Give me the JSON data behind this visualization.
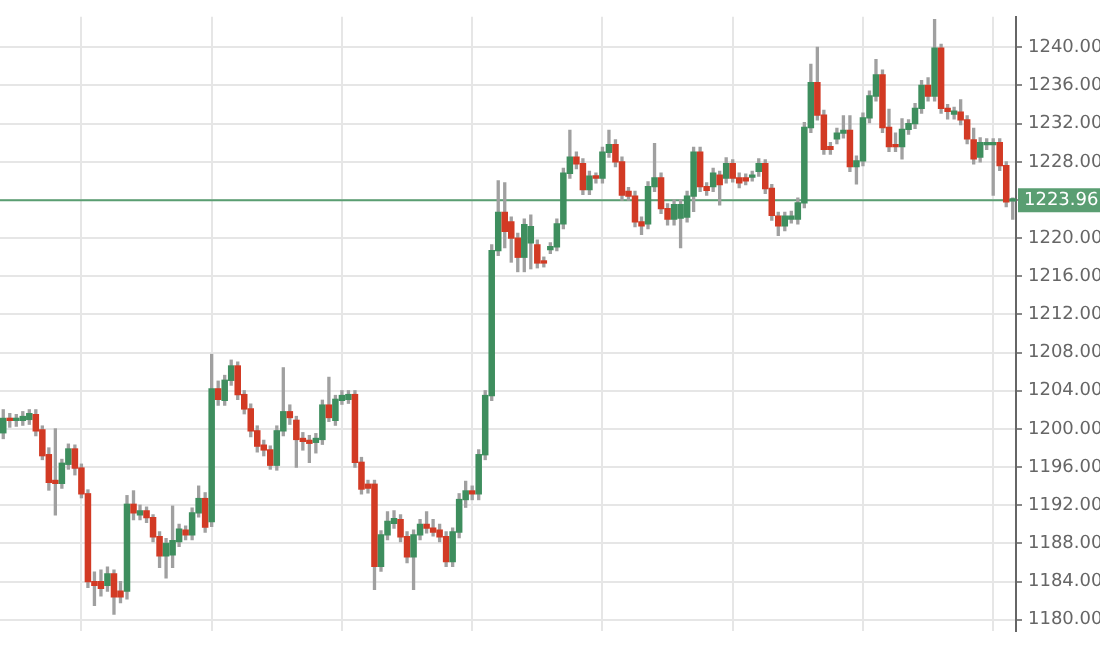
{
  "chart_data": {
    "type": "candlestick",
    "categories": [
      null,
      null,
      null,
      null,
      null,
      null,
      null,
      null,
      null,
      null,
      null,
      null,
      null,
      null,
      null,
      null,
      null,
      null,
      null,
      null,
      null,
      null,
      null,
      null,
      null,
      null,
      null,
      null,
      null,
      null,
      null,
      null,
      null,
      null,
      null,
      null,
      null,
      null,
      null,
      null,
      null,
      null,
      null,
      null,
      null,
      null,
      null,
      null,
      null,
      null,
      null,
      null,
      null,
      null,
      null,
      null,
      null,
      null,
      null,
      null,
      null,
      null,
      null,
      null,
      null,
      null,
      null,
      null,
      null,
      null,
      null,
      null,
      null,
      null,
      null,
      null,
      null,
      null,
      null,
      null,
      null,
      null,
      null,
      null,
      null,
      null,
      null,
      null,
      null,
      null,
      null,
      null,
      null,
      null,
      null,
      null,
      null,
      null,
      null,
      null,
      null,
      null,
      null,
      null,
      null,
      null,
      null,
      null,
      null,
      null,
      null,
      null,
      null,
      null,
      null,
      null,
      null,
      null,
      null,
      null,
      null,
      null,
      null,
      null,
      null,
      null,
      null,
      null,
      null,
      null,
      null,
      null,
      null,
      null,
      null,
      null,
      null,
      null,
      null,
      null,
      null,
      null,
      null,
      null,
      null,
      null,
      null,
      null,
      null,
      null,
      null,
      null,
      null,
      null,
      null,
      null
    ],
    "ohlc": [
      [
        1199.6,
        1202,
        1199,
        1201.1
      ],
      [
        1201.1,
        1201.6,
        1200.2,
        1200.9
      ],
      [
        1200.9,
        1201.5,
        1200.3,
        1201.0
      ],
      [
        1200.9,
        1201.8,
        1200.4,
        1201.3
      ],
      [
        1201.0,
        1202,
        1200.5,
        1201.6
      ],
      [
        1201.5,
        1202,
        1199.3,
        1199.8
      ],
      [
        1199.9,
        1200.3,
        1196.8,
        1197.2
      ],
      [
        1197.3,
        1198,
        1193.6,
        1194.4
      ],
      [
        1194.6,
        1200,
        1191,
        1194.3
      ],
      [
        1194.3,
        1196.8,
        1193.8,
        1196.4
      ],
      [
        1196.3,
        1198.4,
        1195.8,
        1197.9
      ],
      [
        1197.9,
        1198.3,
        1195.2,
        1195.9
      ],
      [
        1195.9,
        1196.3,
        1192.8,
        1193.2
      ],
      [
        1193.2,
        1193.6,
        1183.4,
        1184.0
      ],
      [
        1184.0,
        1185,
        1181.5,
        1183.6
      ],
      [
        1184,
        1185.2,
        1182.5,
        1183.3
      ],
      [
        1183.6,
        1185.5,
        1183,
        1184.8
      ],
      [
        1184.8,
        1185.2,
        1180.6,
        1182.4
      ],
      [
        1183.0,
        1184,
        1181.8,
        1182.4
      ],
      [
        1183.0,
        1193,
        1182.2,
        1192.1
      ],
      [
        1192.1,
        1193.5,
        1190.5,
        1191.2
      ],
      [
        1191.0,
        1192,
        1190.5,
        1191.4
      ],
      [
        1191.4,
        1191.8,
        1190.2,
        1190.7
      ],
      [
        1190.7,
        1191,
        1188.2,
        1188.7
      ],
      [
        1188.7,
        1189.2,
        1185.5,
        1186.7
      ],
      [
        1186.7,
        1188.5,
        1184.4,
        1188.0
      ],
      [
        1186.8,
        1191.9,
        1185.5,
        1188.3
      ],
      [
        1188.2,
        1190,
        1187.7,
        1189.5
      ],
      [
        1189.4,
        1189.8,
        1188.4,
        1188.9
      ],
      [
        1188.9,
        1191.7,
        1188.4,
        1191.2
      ],
      [
        1191.2,
        1194,
        1190.8,
        1192.7
      ],
      [
        1192.7,
        1193.3,
        1189.2,
        1189.7
      ],
      [
        1190.3,
        1207.8,
        1189.8,
        1204.2
      ],
      [
        1204.2,
        1205,
        1202.5,
        1203.1
      ],
      [
        1203.0,
        1205.6,
        1202.5,
        1205.1
      ],
      [
        1205.1,
        1207.2,
        1204.6,
        1206.6
      ],
      [
        1206.6,
        1207,
        1203.1,
        1203.6
      ],
      [
        1203.6,
        1204,
        1201.6,
        1202.1
      ],
      [
        1202.1,
        1202.6,
        1199.2,
        1199.8
      ],
      [
        1199.8,
        1200.3,
        1197.6,
        1198.2
      ],
      [
        1198.3,
        1198.8,
        1197.2,
        1197.8
      ],
      [
        1197.8,
        1198.2,
        1195.8,
        1196.2
      ],
      [
        1196.2,
        1200.3,
        1195.7,
        1199.8
      ],
      [
        1199.8,
        1206.4,
        1199.3,
        1201.8
      ],
      [
        1201.8,
        1202.5,
        1200.5,
        1201.2
      ],
      [
        1200.9,
        1201.3,
        1196,
        1198.9
      ],
      [
        1199.0,
        1199.6,
        1197.8,
        1198.7
      ],
      [
        1198.8,
        1199.3,
        1196.5,
        1198.5
      ],
      [
        1198.6,
        1199.5,
        1197.5,
        1199.0
      ],
      [
        1198.9,
        1203,
        1198.4,
        1202.5
      ],
      [
        1202.5,
        1205.4,
        1200.8,
        1201.2
      ],
      [
        1200.9,
        1203.5,
        1200.4,
        1203.1
      ],
      [
        1203.0,
        1204,
        1202.6,
        1203.5
      ],
      [
        1203.1,
        1204,
        1202.7,
        1203.6
      ],
      [
        1203.6,
        1204,
        1196,
        1196.5
      ],
      [
        1196.5,
        1197,
        1193.2,
        1193.7
      ],
      [
        1194.2,
        1194.6,
        1193.3,
        1193.8
      ],
      [
        1194.2,
        1194.6,
        1183.2,
        1185.6
      ],
      [
        1185.6,
        1189.3,
        1185.1,
        1188.9
      ],
      [
        1188.9,
        1191.3,
        1188.4,
        1190.3
      ],
      [
        1190.1,
        1191.4,
        1189.6,
        1190.6
      ],
      [
        1190.5,
        1191,
        1188.2,
        1188.7
      ],
      [
        1188.7,
        1189.2,
        1186,
        1186.6
      ],
      [
        1186.6,
        1189.4,
        1183.2,
        1188.9
      ],
      [
        1188.9,
        1190.5,
        1188.4,
        1190.0
      ],
      [
        1190.0,
        1191.3,
        1189.1,
        1189.6
      ],
      [
        1189.6,
        1190.5,
        1188.8,
        1189.2
      ],
      [
        1189.4,
        1190,
        1188.2,
        1188.7
      ],
      [
        1188.7,
        1189.2,
        1185.6,
        1186.1
      ],
      [
        1186.1,
        1189.6,
        1185.6,
        1189.2
      ],
      [
        1189.2,
        1193.2,
        1188.6,
        1192.6
      ],
      [
        1192.6,
        1194.5,
        1191.8,
        1193.5
      ],
      [
        1193.5,
        1194,
        1192.6,
        1193.2
      ],
      [
        1193.2,
        1197.8,
        1192.6,
        1197.3
      ],
      [
        1197.3,
        1204,
        1196.8,
        1203.5
      ],
      [
        1203.5,
        1219.3,
        1203,
        1218.7
      ],
      [
        1218.7,
        1226,
        1218.2,
        1222.7
      ],
      [
        1222.7,
        1225.8,
        1219,
        1220.7
      ],
      [
        1221.7,
        1222.2,
        1217.5,
        1220.0
      ],
      [
        1220.0,
        1220.5,
        1216.5,
        1218.0
      ],
      [
        1218.0,
        1222,
        1216.5,
        1221.4
      ],
      [
        1219.5,
        1222.4,
        1216.8,
        1221.2
      ],
      [
        1219.3,
        1219.8,
        1216.9,
        1217.4
      ],
      [
        1217.6,
        1218,
        1217,
        1217.4
      ],
      [
        1218.8,
        1219.5,
        1218.4,
        1219.1
      ],
      [
        1219.1,
        1222,
        1218.7,
        1221.5
      ],
      [
        1221.5,
        1227.3,
        1221,
        1226.8
      ],
      [
        1226.8,
        1231.3,
        1226.3,
        1228.5
      ],
      [
        1228.5,
        1229,
        1227.3,
        1227.8
      ],
      [
        1227.8,
        1228.3,
        1224.6,
        1225.1
      ],
      [
        1225.1,
        1227,
        1224.6,
        1226.5
      ],
      [
        1226.5,
        1226.8,
        1225.8,
        1226.3
      ],
      [
        1226.3,
        1229.5,
        1225.8,
        1229.0
      ],
      [
        1229.0,
        1231.3,
        1228.5,
        1229.8
      ],
      [
        1229.8,
        1230.3,
        1227.5,
        1228.0
      ],
      [
        1228.0,
        1228.5,
        1224,
        1224.5
      ],
      [
        1224.9,
        1225.3,
        1224,
        1224.4
      ],
      [
        1224.4,
        1224.9,
        1221.2,
        1221.7
      ],
      [
        1221.7,
        1222.2,
        1220.4,
        1221.3
      ],
      [
        1221.5,
        1225.9,
        1221,
        1225.4
      ],
      [
        1225.4,
        1229.9,
        1224.9,
        1226.3
      ],
      [
        1226.3,
        1226.8,
        1222.6,
        1223.1
      ],
      [
        1223.1,
        1223.6,
        1221.4,
        1222.0
      ],
      [
        1222.0,
        1224,
        1221.4,
        1223.5
      ],
      [
        1222.1,
        1224,
        1219,
        1223.5
      ],
      [
        1222.2,
        1224.9,
        1221.7,
        1224.4
      ],
      [
        1224.4,
        1229.5,
        1222.8,
        1229.0
      ],
      [
        1229.0,
        1229.5,
        1224.9,
        1225.4
      ],
      [
        1225.4,
        1225.8,
        1224.5,
        1225.0
      ],
      [
        1225.4,
        1227.3,
        1224.9,
        1226.8
      ],
      [
        1226.6,
        1227,
        1223.5,
        1225.6
      ],
      [
        1226.3,
        1228.4,
        1225.8,
        1227.8
      ],
      [
        1227.8,
        1228.2,
        1225.9,
        1226.3
      ],
      [
        1226.3,
        1226.8,
        1225.3,
        1225.8
      ],
      [
        1226.3,
        1226.7,
        1225.6,
        1226.0
      ],
      [
        1226.4,
        1227,
        1226,
        1226.6
      ],
      [
        1227.0,
        1228.3,
        1226.5,
        1227.8
      ],
      [
        1227.8,
        1228.2,
        1224.7,
        1225.2
      ],
      [
        1225.2,
        1225.6,
        1221.9,
        1222.4
      ],
      [
        1222.3,
        1222.7,
        1220.3,
        1221.3
      ],
      [
        1221.3,
        1222.7,
        1220.8,
        1222.3
      ],
      [
        1222.0,
        1222.8,
        1221.6,
        1222.3
      ],
      [
        1222.0,
        1224.2,
        1221.5,
        1223.7
      ],
      [
        1223.7,
        1232.1,
        1223.2,
        1231.6
      ],
      [
        1231.6,
        1238.2,
        1231.1,
        1236.3
      ],
      [
        1236.3,
        1240,
        1232.4,
        1232.9
      ],
      [
        1232.9,
        1233.4,
        1228.8,
        1229.3
      ],
      [
        1229.6,
        1230,
        1228.8,
        1229.3
      ],
      [
        1230.4,
        1231.5,
        1229.9,
        1231.0
      ],
      [
        1231.0,
        1232.8,
        1230.5,
        1231.3
      ],
      [
        1231.3,
        1232.8,
        1227,
        1227.5
      ],
      [
        1227.5,
        1228.6,
        1225.7,
        1228.1
      ],
      [
        1228.1,
        1233.1,
        1227.6,
        1232.6
      ],
      [
        1232.6,
        1235.4,
        1232.1,
        1234.9
      ],
      [
        1234.9,
        1238.7,
        1234.4,
        1237.1
      ],
      [
        1237.1,
        1237.6,
        1231.1,
        1231.6
      ],
      [
        1231.6,
        1233.5,
        1229.1,
        1229.6
      ],
      [
        1229.8,
        1231,
        1229.1,
        1229.6
      ],
      [
        1229.6,
        1232.5,
        1228.3,
        1231.4
      ],
      [
        1231.4,
        1232.4,
        1230.9,
        1232.0
      ],
      [
        1232.0,
        1234.1,
        1231.5,
        1233.6
      ],
      [
        1233.6,
        1236.5,
        1233.1,
        1236.0
      ],
      [
        1236.0,
        1236.8,
        1234.4,
        1234.9
      ],
      [
        1234.9,
        1242.9,
        1234.4,
        1239.9
      ],
      [
        1239.9,
        1240.3,
        1233.1,
        1233.6
      ],
      [
        1233.6,
        1234,
        1232.5,
        1233.3
      ],
      [
        1233.0,
        1233.7,
        1232.5,
        1233.3
      ],
      [
        1233.2,
        1234.5,
        1231.9,
        1232.4
      ],
      [
        1232.4,
        1232.8,
        1229.9,
        1230.4
      ],
      [
        1230.3,
        1231.5,
        1227.8,
        1228.3
      ],
      [
        1228.5,
        1230.5,
        1228,
        1230.0
      ],
      [
        1229.8,
        1230.4,
        1229.3,
        1230.0
      ],
      [
        1229.8,
        1230.4,
        1224.5,
        1230.0
      ],
      [
        1230.0,
        1230.4,
        1227.1,
        1227.6
      ],
      [
        1227.6,
        1228,
        1223.3,
        1223.8
      ],
      [
        1223.9,
        1224.2,
        1222,
        1223.96
      ]
    ],
    "colors": [
      "#3e8e5e",
      "#d23a24",
      "#3e8e5e",
      "#3e8e5e",
      "#3e8e5e",
      "#d23a24",
      "#d23a24",
      "#d23a24",
      "#d23a24",
      "#3e8e5e",
      "#3e8e5e",
      "#d23a24",
      "#d23a24",
      "#d23a24",
      "#d23a24",
      "#d23a24",
      "#3e8e5e",
      "#d23a24",
      "#d23a24",
      "#3e8e5e",
      "#d23a24",
      "#3e8e5e",
      "#d23a24",
      "#d23a24",
      "#d23a24",
      "#3e8e5e",
      "#3e8e5e",
      "#3e8e5e",
      "#d23a24",
      "#3e8e5e",
      "#3e8e5e",
      "#d23a24",
      "#3e8e5e",
      "#d23a24",
      "#3e8e5e",
      "#3e8e5e",
      "#d23a24",
      "#d23a24",
      "#d23a24",
      "#d23a24",
      "#d23a24",
      "#d23a24",
      "#3e8e5e",
      "#3e8e5e",
      "#d23a24",
      "#d23a24",
      "#d23a24",
      "#d23a24",
      "#3e8e5e",
      "#3e8e5e",
      "#d23a24",
      "#3e8e5e",
      "#3e8e5e",
      "#3e8e5e",
      "#d23a24",
      "#d23a24",
      "#d23a24",
      "#d23a24",
      "#3e8e5e",
      "#3e8e5e",
      "#3e8e5e",
      "#d23a24",
      "#d23a24",
      "#3e8e5e",
      "#3e8e5e",
      "#d23a24",
      "#d23a24",
      "#d23a24",
      "#d23a24",
      "#3e8e5e",
      "#3e8e5e",
      "#3e8e5e",
      "#d23a24",
      "#3e8e5e",
      "#3e8e5e",
      "#3e8e5e",
      "#3e8e5e",
      "#d23a24",
      "#d23a24",
      "#d23a24",
      "#3e8e5e",
      "#3e8e5e",
      "#d23a24",
      "#d23a24",
      "#3e8e5e",
      "#3e8e5e",
      "#3e8e5e",
      "#3e8e5e",
      "#d23a24",
      "#d23a24",
      "#3e8e5e",
      "#d23a24",
      "#3e8e5e",
      "#3e8e5e",
      "#d23a24",
      "#d23a24",
      "#d23a24",
      "#d23a24",
      "#d23a24",
      "#3e8e5e",
      "#3e8e5e",
      "#d23a24",
      "#d23a24",
      "#3e8e5e",
      "#3e8e5e",
      "#3e8e5e",
      "#3e8e5e",
      "#d23a24",
      "#d23a24",
      "#3e8e5e",
      "#d23a24",
      "#3e8e5e",
      "#d23a24",
      "#d23a24",
      "#d23a24",
      "#3e8e5e",
      "#3e8e5e",
      "#d23a24",
      "#d23a24",
      "#d23a24",
      "#3e8e5e",
      "#3e8e5e",
      "#3e8e5e",
      "#3e8e5e",
      "#3e8e5e",
      "#d23a24",
      "#d23a24",
      "#d23a24",
      "#3e8e5e",
      "#3e8e5e",
      "#d23a24",
      "#3e8e5e",
      "#3e8e5e",
      "#3e8e5e",
      "#3e8e5e",
      "#d23a24",
      "#d23a24",
      "#d23a24",
      "#3e8e5e",
      "#3e8e5e",
      "#3e8e5e",
      "#3e8e5e",
      "#d23a24",
      "#3e8e5e",
      "#d23a24",
      "#d23a24",
      "#3e8e5e",
      "#d23a24",
      "#d23a24",
      "#d23a24",
      "#3e8e5e",
      "#3e8e5e",
      "#3e8e5e",
      "#d23a24",
      "#d23a24",
      "#3e8e5e"
    ],
    "ylim": [
      1178.8,
      1243.2
    ],
    "yticks": [
      {
        "value": 1180,
        "label": "1180.00"
      },
      {
        "value": 1184,
        "label": "1184.00"
      },
      {
        "value": 1188,
        "label": "1188.00"
      },
      {
        "value": 1192,
        "label": "1192.00"
      },
      {
        "value": 1196,
        "label": "1196.00"
      },
      {
        "value": 1200,
        "label": "1200.00"
      },
      {
        "value": 1204,
        "label": "1204.00"
      },
      {
        "value": 1208,
        "label": "1208.00"
      },
      {
        "value": 1212,
        "label": "1212.00"
      },
      {
        "value": 1216,
        "label": "1216.00"
      },
      {
        "value": 1220,
        "label": "1220.00"
      },
      {
        "value": 1224,
        "label": null
      },
      {
        "value": 1228,
        "label": "1228.00"
      },
      {
        "value": 1232,
        "label": "1232.00"
      },
      {
        "value": 1236,
        "label": "1236.00"
      },
      {
        "value": 1240,
        "label": "1240.00"
      }
    ],
    "grid": true,
    "tick_labels": "y",
    "ref_lines": [
      {
        "axis": "y",
        "value": 1223.96,
        "label": "1223.96",
        "color": "#5a9e72"
      }
    ]
  }
}
